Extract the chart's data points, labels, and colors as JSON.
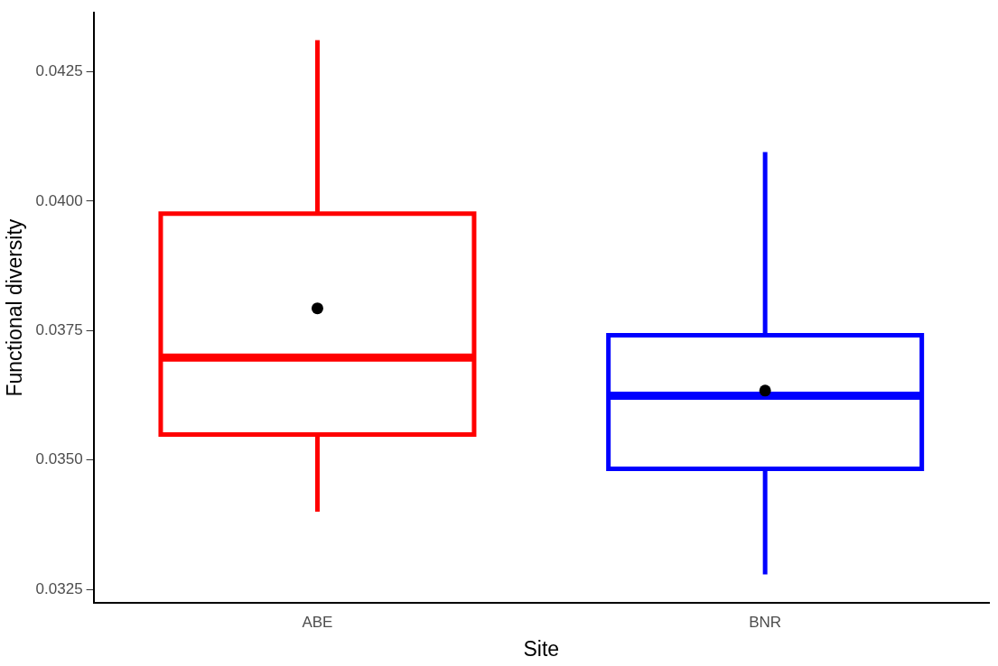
{
  "chart_data": {
    "type": "box",
    "xlabel": "Site",
    "ylabel": "Functional diversity",
    "categories": [
      "ABE",
      "BNR"
    ],
    "colors": [
      "#ff0000",
      "#0000ff"
    ],
    "boxes": [
      {
        "low": 0.034,
        "q1": 0.03549,
        "median": 0.03698,
        "q3": 0.03976,
        "high": 0.04311,
        "mean": 0.03793
      },
      {
        "low": 0.03279,
        "q1": 0.03483,
        "median": 0.03624,
        "q3": 0.03741,
        "high": 0.04095,
        "mean": 0.03634
      }
    ],
    "ylim": [
      0.03224,
      0.04364
    ],
    "yticks": [
      {
        "value": 0.0325,
        "label": "0.0325"
      },
      {
        "value": 0.035,
        "label": "0.0350"
      },
      {
        "value": 0.0375,
        "label": "0.0375"
      },
      {
        "value": 0.04,
        "label": "0.0400"
      },
      {
        "value": 0.0425,
        "label": "0.0425"
      }
    ],
    "grid": false,
    "legend": false
  }
}
